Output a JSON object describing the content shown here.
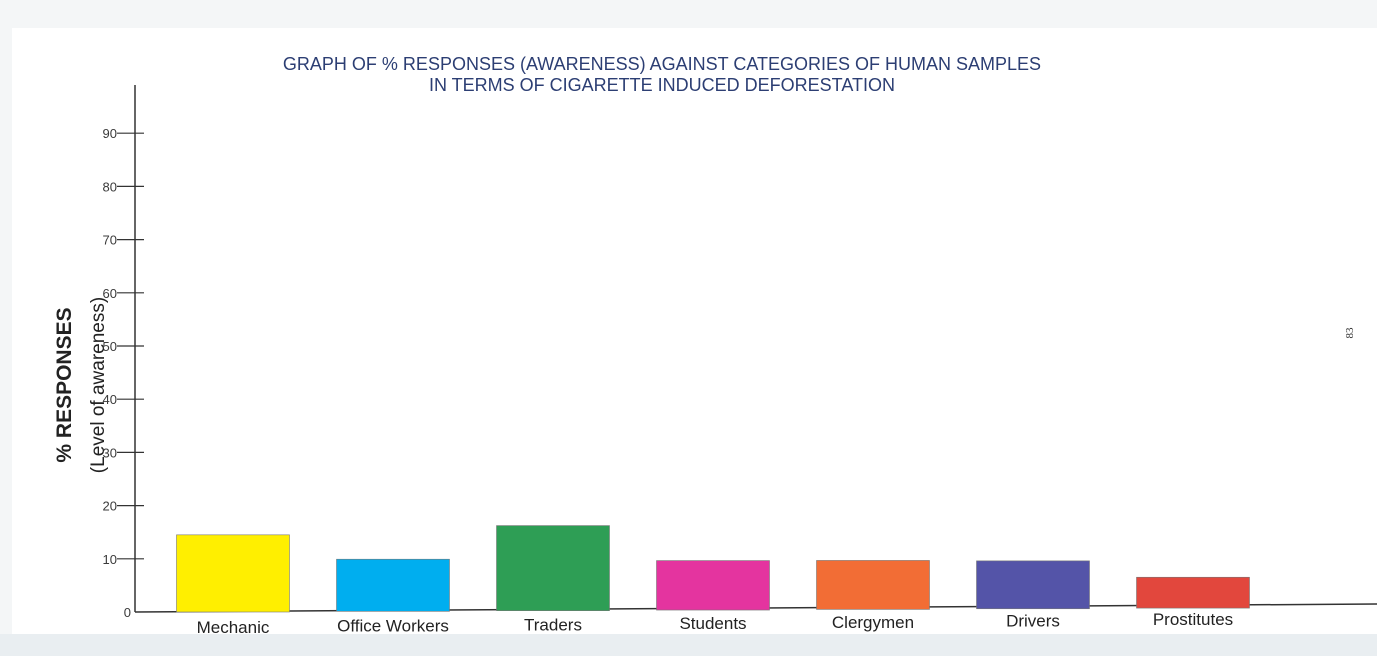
{
  "page_number": "83",
  "chart_data": {
    "type": "bar",
    "title": [
      "GRAPH OF % RESPONSES (AWARENESS) AGAINST CATEGORIES OF HUMAN SAMPLES",
      "IN TERMS OF CIGARETTE INDUCED DEFORESTATION"
    ],
    "ylabel": "% RESPONSES",
    "ylabel_sub": "(Level of awareness)",
    "xlabel": "",
    "ylim": [
      0,
      100
    ],
    "yticks": [
      0,
      10,
      20,
      30,
      40,
      50,
      60,
      70,
      80,
      90
    ],
    "categories": [
      "Mechanic",
      "Office Workers",
      "Traders",
      "Students",
      "Clergymen",
      "Drivers",
      "Prostitutes"
    ],
    "values": [
      14.5,
      9.8,
      16,
      9.3,
      9.2,
      9,
      5.8
    ],
    "colors": [
      "#ffef00",
      "#00aeef",
      "#2e9e55",
      "#e4349f",
      "#f26d35",
      "#5454a8",
      "#e2473d"
    ],
    "grid": false,
    "legend": "none"
  }
}
